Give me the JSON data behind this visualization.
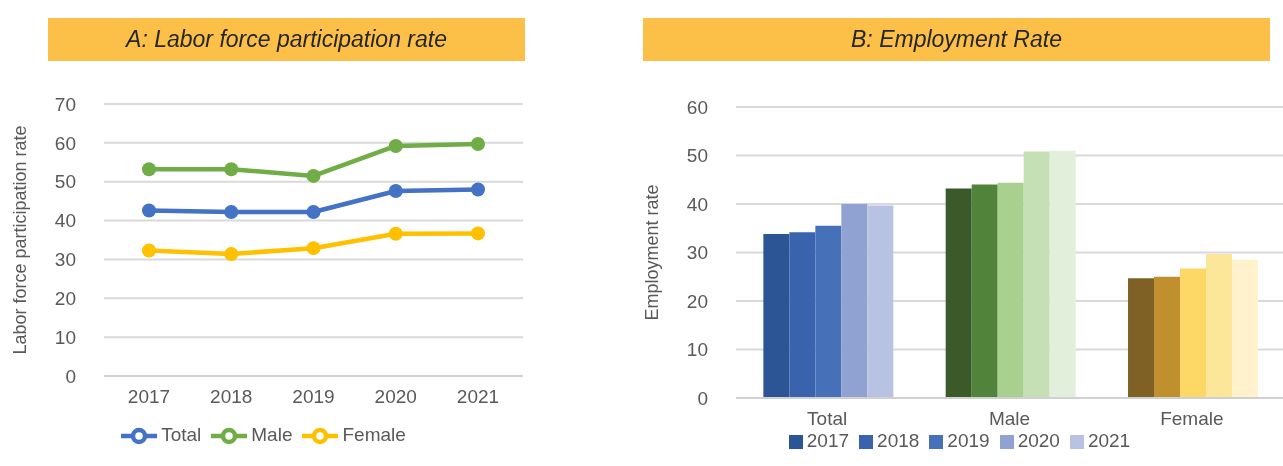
{
  "chart_data": [
    {
      "type": "line",
      "title": "A: Labor force participation rate",
      "ylabel": "Labor force participation rate",
      "categories": [
        "2017",
        "2018",
        "2019",
        "2020",
        "2021"
      ],
      "series": [
        {
          "name": "Total",
          "color": "#4472c4",
          "values": [
            42.6,
            42.2,
            42.2,
            47.6,
            48.0
          ]
        },
        {
          "name": "Male",
          "color": "#70ad47",
          "values": [
            53.2,
            53.2,
            51.5,
            59.2,
            59.7
          ]
        },
        {
          "name": "Female",
          "color": "#ffc000",
          "values": [
            32.3,
            31.4,
            32.9,
            36.6,
            36.7
          ]
        }
      ],
      "ylim": [
        0,
        70
      ],
      "yticks": [
        0,
        10,
        20,
        30,
        40,
        50,
        60,
        70
      ],
      "grid": "y",
      "legend": "bottom",
      "marker": "circle",
      "line_style": "solid"
    },
    {
      "type": "bar",
      "title": "B: Employment Rate",
      "ylabel": "Employment rate",
      "categories": [
        "Total",
        "Male",
        "Female"
      ],
      "series": [
        {
          "name": "2017",
          "color": "#2b5594",
          "colors": [
            "#2b5594",
            "#3a5a2a",
            "#7f6125"
          ],
          "values": [
            33.8,
            43.2,
            24.7
          ]
        },
        {
          "name": "2018",
          "color": "#3a63ad",
          "colors": [
            "#3a63ad",
            "#52833a",
            "#c0902e"
          ],
          "values": [
            34.2,
            44.0,
            25.0
          ]
        },
        {
          "name": "2019",
          "color": "#4671b8",
          "colors": [
            "#4671b8",
            "#a9d08e",
            "#fdd866"
          ],
          "values": [
            35.5,
            44.4,
            26.7
          ]
        },
        {
          "name": "2020",
          "color": "#8fa2d2",
          "colors": [
            "#8fa2d2",
            "#c5e0b4",
            "#fce699"
          ],
          "values": [
            40.0,
            50.8,
            29.7
          ]
        },
        {
          "name": "2021",
          "color": "#b8c2e2",
          "colors": [
            "#b8c2e2",
            "#e2efda",
            "#fff2cc"
          ],
          "values": [
            39.7,
            51.0,
            28.5
          ]
        }
      ],
      "ylim": [
        0,
        60
      ],
      "yticks": [
        0,
        10,
        20,
        30,
        40,
        50,
        60
      ],
      "grid": "y",
      "legend": "bottom"
    }
  ]
}
